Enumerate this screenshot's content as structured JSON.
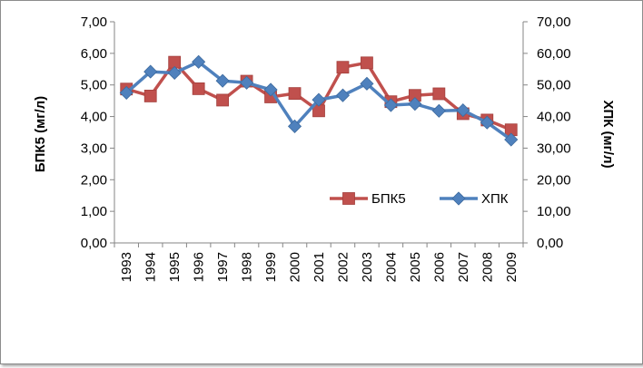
{
  "chart_data": {
    "type": "line",
    "categories": [
      "1993",
      "1994",
      "1995",
      "1996",
      "1997",
      "1998",
      "1999",
      "2000",
      "2001",
      "2002",
      "2003",
      "2004",
      "2005",
      "2006",
      "2007",
      "2008",
      "2009"
    ],
    "series": [
      {
        "name": "БПК5",
        "axis": "left",
        "color": "#c0504d",
        "marker": "square",
        "values": [
          4.87,
          4.65,
          5.72,
          4.88,
          4.52,
          5.12,
          4.62,
          4.73,
          4.18,
          5.56,
          5.7,
          4.47,
          4.67,
          4.72,
          4.09,
          3.89,
          3.58
        ]
      },
      {
        "name": "ХПК",
        "axis": "right",
        "color": "#4f81bd",
        "marker": "diamond",
        "values": [
          47.5,
          54.2,
          53.8,
          57.3,
          51.3,
          50.7,
          48.5,
          36.9,
          45.3,
          46.7,
          50.4,
          43.6,
          44.0,
          41.8,
          42.0,
          38.1,
          32.7
        ]
      }
    ],
    "ylabel_left": "БПК5 (мг/л)",
    "ylabel_right": "ХПК (мг/л)",
    "ylim_left": [
      0,
      7
    ],
    "ylim_right": [
      0,
      70
    ],
    "yticks_left": [
      "0,00",
      "1,00",
      "2,00",
      "3,00",
      "4,00",
      "5,00",
      "6,00",
      "7,00"
    ],
    "yticks_right": [
      "0,00",
      "10,00",
      "20,00",
      "30,00",
      "40,00",
      "50,00",
      "60,00",
      "70,00"
    ],
    "grid": false,
    "legend_position": "inside-right"
  }
}
